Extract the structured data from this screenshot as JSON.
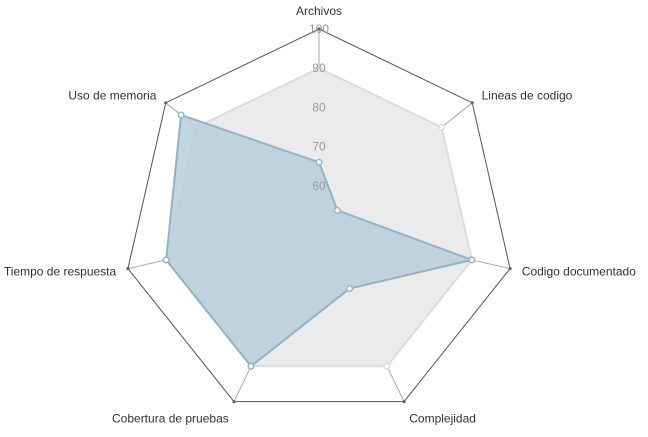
{
  "chart_data": {
    "type": "radar",
    "indicators": [
      {
        "name": "Archivos",
        "max": 100
      },
      {
        "name": "Lineas de codigo",
        "max": 100
      },
      {
        "name": "Codigo documentado",
        "max": 100
      },
      {
        "name": "Complejidad",
        "max": 100
      },
      {
        "name": "Cobertura de pruebas",
        "max": 100
      },
      {
        "name": "Tiempo de respuesta",
        "max": 100
      },
      {
        "name": "Uso de memoria",
        "max": 100
      }
    ],
    "radius_range": [
      50,
      100
    ],
    "ticks": [
      "60",
      "70",
      "80",
      "90",
      "100"
    ],
    "series": [
      {
        "values": [
          90,
          90,
          90,
          90,
          90,
          90,
          90
        ],
        "fill": "#ebebeb",
        "stroke": "#dddddd"
      },
      {
        "values": [
          66,
          56,
          90,
          68,
          90,
          90,
          95
        ],
        "fill": "#b9cfdb",
        "stroke": "#8fb4c9"
      }
    ],
    "split_line_color": "#aaaaaa",
    "outer_line_color": "#555555"
  }
}
